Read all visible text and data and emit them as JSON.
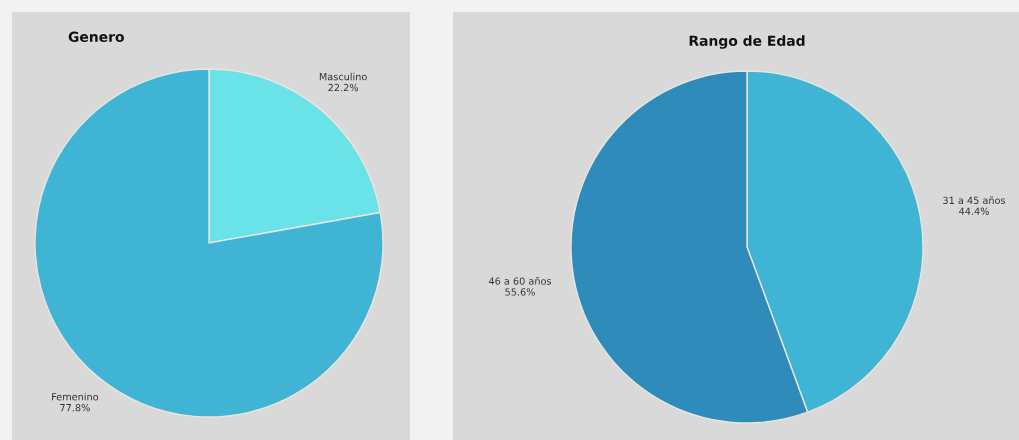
{
  "chart_data": [
    {
      "type": "pie",
      "title": "Genero",
      "categories": [
        "Masculino",
        "Femenino"
      ],
      "values": [
        22.2,
        77.8
      ],
      "value_labels": [
        "22.2%",
        "77.8%"
      ],
      "colors": [
        "#6ae3e8",
        "#40b4d4"
      ]
    },
    {
      "type": "pie",
      "title": "Rango de Edad",
      "categories": [
        "31 a 45 años",
        "46 a 60 años"
      ],
      "values": [
        44.4,
        55.6
      ],
      "value_labels": [
        "44.4%",
        "55.6%"
      ],
      "colors": [
        "#40b4d4",
        "#2e8bba"
      ]
    }
  ]
}
